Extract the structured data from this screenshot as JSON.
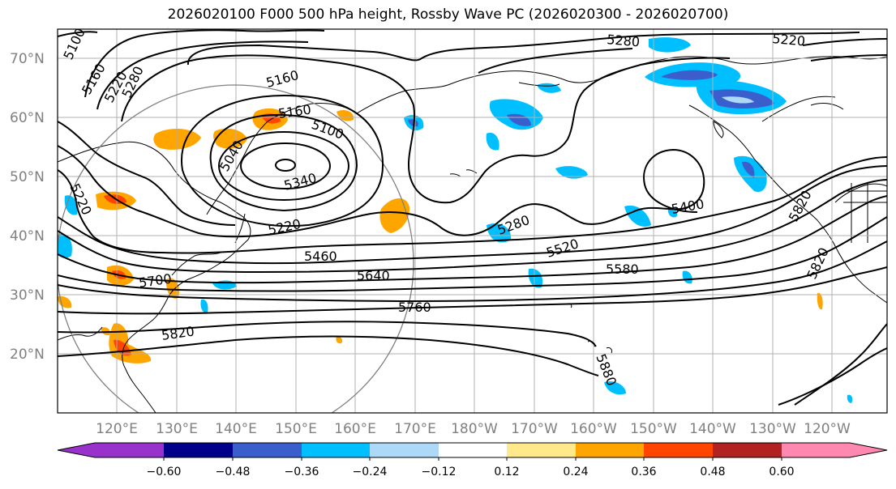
{
  "title": "2026020100 F000 500 hPa height, Rossby Wave PC (2026020300 - 2026020700)",
  "map": {
    "projection": "PlateCarree",
    "lon_range_degE": [
      105,
      250
    ],
    "lat_range": [
      10,
      75
    ],
    "lat_ticks": [
      "70°N",
      "60°N",
      "50°N",
      "40°N",
      "30°N",
      "20°N"
    ],
    "lon_ticks": [
      "120°E",
      "130°E",
      "140°E",
      "150°E",
      "160°E",
      "170°E",
      "180°W",
      "170°W",
      "160°W",
      "150°W",
      "140°W",
      "130°W",
      "120°W"
    ],
    "contour_labels": [
      "5100",
      "5160",
      "5220",
      "5280",
      "5220",
      "5280",
      "5160",
      "5160",
      "5100",
      "5040",
      "5340",
      "5220",
      "5220",
      "5280",
      "5400",
      "5460",
      "5520",
      "5640",
      "5580",
      "5700",
      "5820",
      "5760",
      "5820",
      "5880"
    ]
  },
  "colorbar": {
    "tick_labels": [
      "−0.60",
      "−0.48",
      "−0.36",
      "−0.24",
      "−0.12",
      "0.12",
      "0.24",
      "0.36",
      "0.48",
      "0.60"
    ],
    "colors": [
      "#9932cc",
      "#00008b",
      "#3a5fcd",
      "#00bfff",
      "#add8f8",
      "#ffffff",
      "#ffe98a",
      "#ffa500",
      "#ff4500",
      "#b22222",
      "#ff88b0"
    ]
  },
  "colors": {
    "land": "#000000",
    "grid": "#b0b0b0",
    "contour": "#000000",
    "circle": "#808080"
  }
}
